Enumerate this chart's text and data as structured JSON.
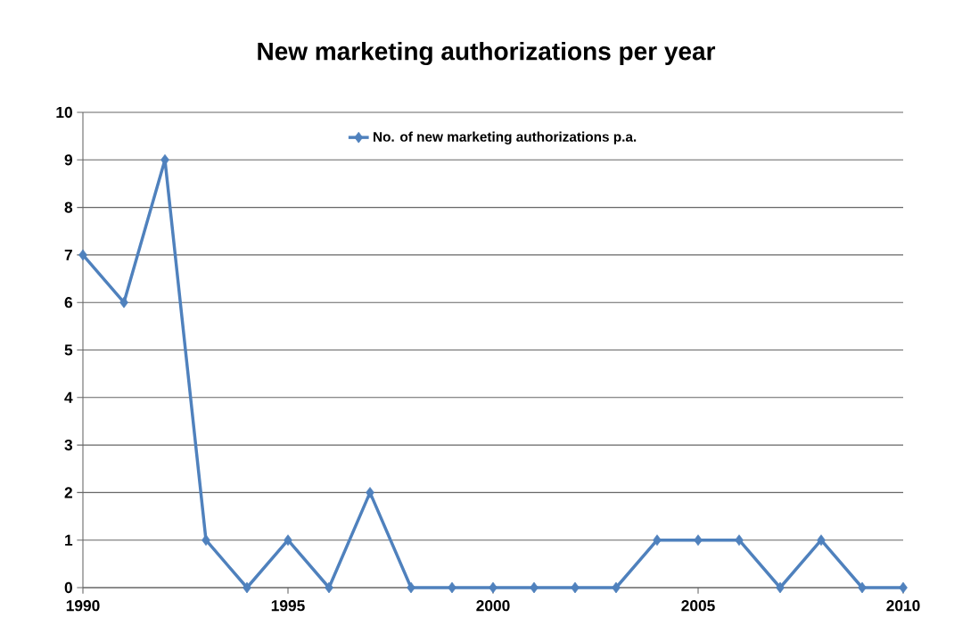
{
  "chart_data": {
    "type": "line",
    "title": "New marketing authorizations per year",
    "x": [
      1990,
      1991,
      1992,
      1993,
      1994,
      1995,
      1996,
      1997,
      1998,
      1999,
      2000,
      2001,
      2002,
      2003,
      2004,
      2005,
      2006,
      2007,
      2008,
      2009,
      2010
    ],
    "series": [
      {
        "name": "No. of new marketing authorizations  p.a.",
        "color": "#4f81bd",
        "values": [
          7,
          6,
          9,
          1,
          0,
          1,
          0,
          2,
          0,
          0,
          0,
          0,
          0,
          0,
          1,
          1,
          1,
          0,
          1,
          0,
          0
        ]
      }
    ],
    "xlim": [
      1990,
      2010
    ],
    "xticks": [
      1990,
      1995,
      2000,
      2005,
      2010
    ],
    "ylim": [
      0,
      10
    ],
    "yticks": [
      0,
      1,
      2,
      3,
      4,
      5,
      6,
      7,
      8,
      9,
      10
    ],
    "grid": "y",
    "legend": "top",
    "marker": "diamond",
    "line_style": "solid"
  }
}
